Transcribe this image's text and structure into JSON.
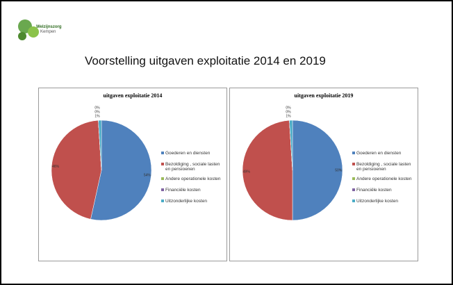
{
  "slide": {
    "title": "Voorstelling uitgaven exploitatie 2014 en 2019",
    "logo_line1": "Welzijnszorg",
    "logo_line2": "Kempen"
  },
  "chart_data": [
    {
      "type": "pie",
      "title": "uitgaven exploitatie 2014",
      "categories": [
        "Goederen en diensten",
        "Bezoldiging , sociale lasten en pensioenen",
        "Andere operationele kosten",
        "Financiële kosten",
        "Uitzonderlijke kosten"
      ],
      "values": [
        54,
        46,
        0,
        0,
        1
      ],
      "value_labels": [
        "54%",
        "46%",
        "0%",
        "0%",
        "1%"
      ],
      "colors": [
        "#4f81bd",
        "#c0504d",
        "#9bbb59",
        "#8064a2",
        "#4bacc6"
      ],
      "legend": "right"
    },
    {
      "type": "pie",
      "title": "uitgaven exploitatie 2019",
      "categories": [
        "Goederen en diensten",
        "Bezoldiging , sociale lasten en pensioenen",
        "Andere operationele kosten",
        "Financiële kosten",
        "Uitzonderlijke kosten"
      ],
      "values": [
        50,
        49,
        0,
        0,
        1
      ],
      "value_labels": [
        "50%",
        "49%",
        "0%",
        "0%",
        "1%"
      ],
      "colors": [
        "#4f81bd",
        "#c0504d",
        "#9bbb59",
        "#8064a2",
        "#4bacc6"
      ],
      "legend": "right"
    }
  ]
}
